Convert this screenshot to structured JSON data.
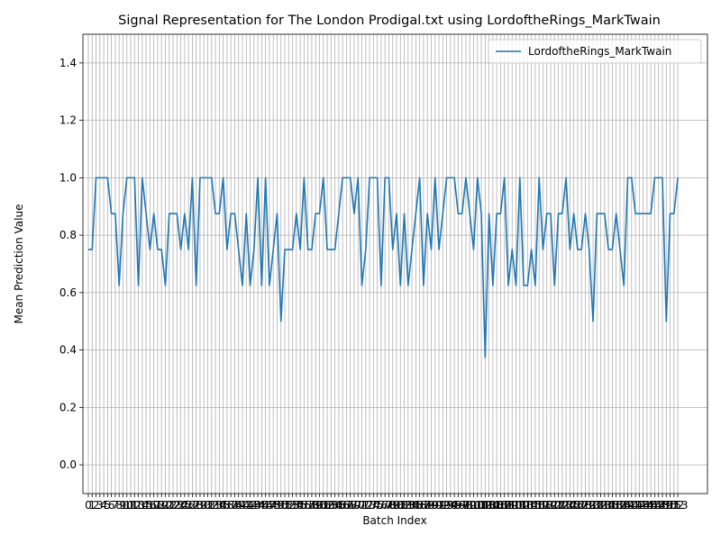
{
  "chart_data": {
    "type": "line",
    "title": "Signal Representation for The London Prodigal.txt using LordoftheRings_MarkTwain",
    "x_label": "Batch Index",
    "y_label": "Mean Prediction Value",
    "x": [
      0,
      1,
      2,
      3,
      4,
      5,
      6,
      7,
      8,
      9,
      10,
      11,
      12,
      13,
      14,
      15,
      16,
      17,
      18,
      19,
      20,
      21,
      22,
      23,
      24,
      25,
      26,
      27,
      28,
      29,
      30,
      31,
      32,
      33,
      34,
      35,
      36,
      37,
      38,
      39,
      40,
      41,
      42,
      43,
      44,
      45,
      46,
      47,
      48,
      49,
      50,
      51,
      52,
      53,
      54,
      55,
      56,
      57,
      58,
      59,
      60,
      61,
      62,
      63,
      64,
      65,
      66,
      67,
      68,
      69,
      70,
      71,
      72,
      73,
      74,
      75,
      76,
      77,
      78,
      79,
      80,
      81,
      82,
      83,
      84,
      85,
      86,
      87,
      88,
      89,
      90,
      91,
      92,
      93,
      94,
      95,
      96,
      97,
      98,
      99,
      100,
      101,
      102,
      103,
      104,
      105,
      106,
      107,
      108,
      109,
      110,
      111,
      112,
      113,
      114,
      115,
      116,
      117,
      118,
      119,
      120,
      121,
      122,
      123,
      124,
      125,
      126,
      127,
      128,
      129,
      130,
      131,
      132,
      133,
      134,
      135,
      136,
      137,
      138,
      139,
      140,
      141,
      142,
      143,
      144,
      145,
      146,
      147,
      148,
      149,
      150,
      151,
      152,
      153
    ],
    "series": [
      {
        "name": "LordoftheRings_MarkTwain",
        "color": "#1f77b4",
        "values": [
          0.75,
          0.75,
          1,
          1,
          1,
          1,
          0.875,
          0.875,
          0.625,
          0.875,
          1,
          1,
          1,
          0.625,
          1,
          0.875,
          0.75,
          0.875,
          0.75,
          0.75,
          0.625,
          0.875,
          0.875,
          0.875,
          0.75,
          0.875,
          0.75,
          1,
          0.625,
          1,
          1,
          1,
          1,
          0.875,
          0.875,
          1,
          0.75,
          0.875,
          0.875,
          0.75,
          0.625,
          0.875,
          0.625,
          0.75,
          1,
          0.625,
          1,
          0.625,
          0.75,
          0.875,
          0.5,
          0.75,
          0.75,
          0.75,
          0.875,
          0.75,
          1,
          0.75,
          0.75,
          0.875,
          0.875,
          1,
          0.75,
          0.75,
          0.75,
          0.875,
          1,
          1,
          1,
          0.875,
          1,
          0.625,
          0.75,
          1,
          1,
          1,
          0.625,
          1,
          1,
          0.75,
          0.875,
          0.625,
          0.875,
          0.625,
          0.75,
          0.875,
          1,
          0.625,
          0.875,
          0.75,
          1,
          0.75,
          0.875,
          1,
          1,
          1,
          0.875,
          0.875,
          1,
          0.875,
          0.75,
          1,
          0.875,
          0.375,
          0.875,
          0.625,
          0.875,
          0.875,
          1,
          0.625,
          0.75,
          0.625,
          1,
          0.625,
          0.625,
          0.75,
          0.625,
          1,
          0.75,
          0.875,
          0.875,
          0.625,
          0.875,
          0.875,
          1,
          0.75,
          0.875,
          0.75,
          0.75,
          0.875,
          0.75,
          0.5,
          0.875,
          0.875,
          0.875,
          0.75,
          0.75,
          0.875,
          0.75,
          0.625,
          1,
          1,
          0.875,
          0.875,
          0.875,
          0.875,
          0.875,
          1,
          1,
          1,
          0.5,
          0.875,
          0.875,
          1
        ]
      }
    ],
    "xlim": [
      -1.4,
      160.7
    ],
    "xticks": [
      0,
      1,
      2,
      3,
      4,
      5,
      6,
      7,
      8,
      9,
      10,
      11,
      12,
      13,
      14,
      15,
      16,
      17,
      18,
      19,
      20,
      21,
      22,
      23,
      24,
      25,
      26,
      27,
      28,
      29,
      30,
      31,
      32,
      33,
      34,
      35,
      36,
      37,
      38,
      39,
      40,
      41,
      42,
      43,
      44,
      45,
      46,
      47,
      48,
      49,
      50,
      51,
      52,
      53,
      54,
      55,
      56,
      57,
      58,
      59,
      60,
      61,
      62,
      63,
      64,
      65,
      66,
      67,
      68,
      69,
      70,
      71,
      72,
      73,
      74,
      75,
      76,
      77,
      78,
      79,
      80,
      81,
      82,
      83,
      84,
      85,
      86,
      87,
      88,
      89,
      90,
      91,
      92,
      93,
      94,
      95,
      96,
      97,
      98,
      99,
      100,
      101,
      102,
      103,
      104,
      105,
      106,
      107,
      108,
      109,
      110,
      111,
      112,
      113,
      114,
      115,
      116,
      117,
      118,
      119,
      120,
      121,
      122,
      123,
      124,
      125,
      126,
      127,
      128,
      129,
      130,
      131,
      132,
      133,
      134,
      135,
      136,
      137,
      138,
      139,
      140,
      141,
      142,
      143,
      144,
      145,
      146,
      147,
      148,
      149,
      150,
      151,
      152,
      153
    ],
    "ylim": [
      -0.1,
      1.5
    ],
    "yticks": [
      {
        "value": 0,
        "label": "0.0"
      },
      0.2,
      0.4,
      0.6,
      0.8,
      {
        "value": 1,
        "label": "1.0"
      },
      1.2,
      1.4
    ],
    "grid": true,
    "legend": "upper right"
  }
}
